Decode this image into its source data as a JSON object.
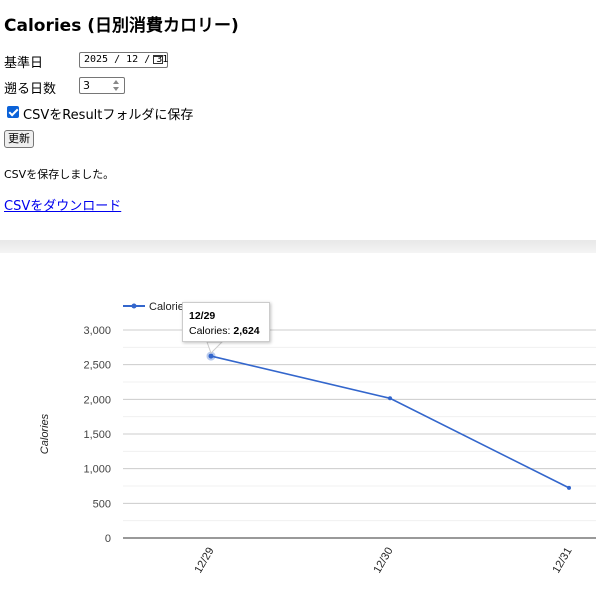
{
  "page": {
    "title": "Calories (日別消費カロリー)"
  },
  "form": {
    "base_date_label": "基準日",
    "base_date_value": "2025 / 12 / 31",
    "days_back_label": "遡る日数",
    "days_back_value": "3",
    "save_csv_label": "CSVをResultフォルダに保存",
    "save_csv_checked": true,
    "update_button_label": "更新"
  },
  "status": {
    "message": "CSVを保存しました。",
    "download_link_label": "CSVをダウンロード"
  },
  "tooltip": {
    "date": "12/29",
    "series": "Calories: ",
    "value": "2,624"
  },
  "chart_data": {
    "type": "line",
    "categories": [
      "12/29",
      "12/30",
      "12/31"
    ],
    "series": [
      {
        "name": "Calories",
        "values": [
          2624,
          2015,
          723
        ],
        "color": "#3366cc"
      }
    ],
    "ylabel": "Calories",
    "ylim": [
      0,
      3000
    ],
    "yticks": [
      0,
      500,
      1000,
      1500,
      2000,
      2500,
      3000
    ],
    "ytick_labels": [
      "0",
      "500",
      "1,000",
      "1,500",
      "2,000",
      "2,500",
      "3,000"
    ],
    "grid": true,
    "legend": "top-left",
    "highlighted_point": "12/29"
  }
}
